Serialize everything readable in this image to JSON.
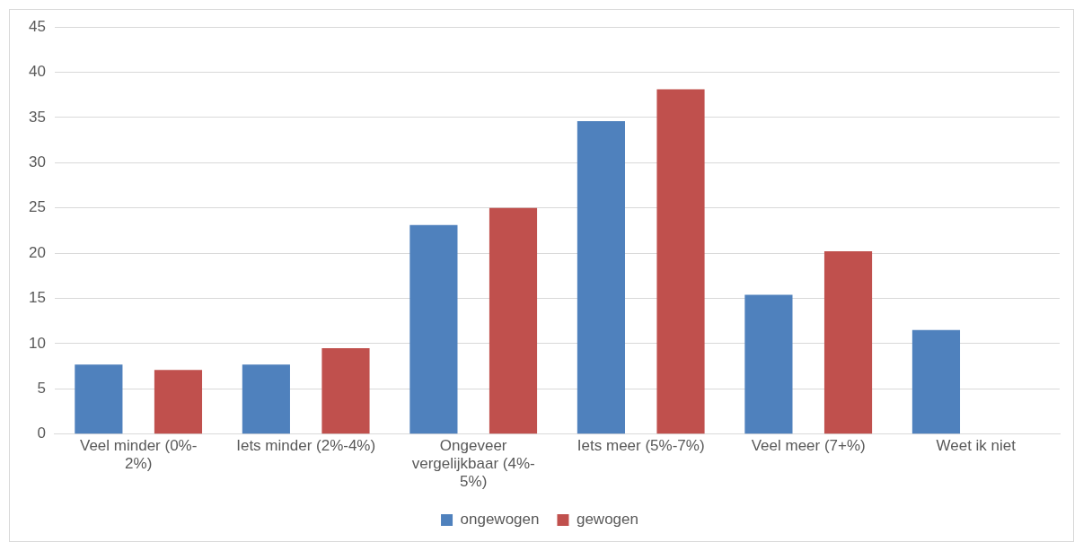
{
  "chart_data": {
    "type": "bar",
    "categories": [
      "Veel minder (0%-2%)",
      "Iets minder (2%-4%)",
      "Ongeveer vergelijkbaar (4%-5%)",
      "Iets meer (5%-7%)",
      "Veel meer (7+%)",
      "Weet ik niet"
    ],
    "series": [
      {
        "name": "ongewogen",
        "color": "#4f81bd",
        "values": [
          7.7,
          7.7,
          23.1,
          34.6,
          15.4,
          11.5
        ]
      },
      {
        "name": "gewogen",
        "color": "#c0504d",
        "values": [
          7.1,
          9.5,
          25,
          38.1,
          20.2,
          null
        ]
      }
    ],
    "ylim": [
      0,
      45
    ],
    "yticks": [
      0,
      5,
      10,
      15,
      20,
      25,
      30,
      35,
      40,
      45
    ],
    "grid": "y",
    "legend": "bottom"
  }
}
